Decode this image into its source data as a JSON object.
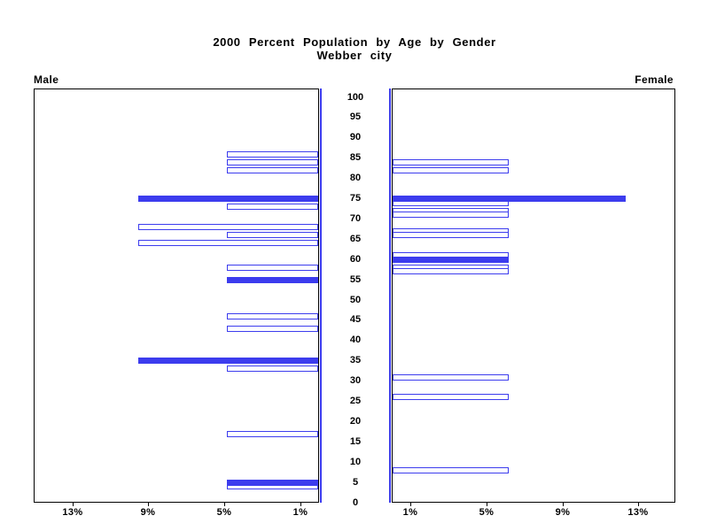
{
  "title": {
    "line1": "2000 Percent Population by Age by Gender",
    "line2": "Webber city"
  },
  "left_panel_label": "Male",
  "right_panel_label": "Female",
  "colors": {
    "bar_blue": "#3c3cee",
    "axis_black": "#000000",
    "background": "#ffffff"
  },
  "chart_data": {
    "type": "bar",
    "subtype": "population-pyramid",
    "title": "2000 Percent Population by Age by Gender",
    "subtitle": "Webber city",
    "age_axis": {
      "min": 0,
      "max": 100,
      "tick_step": 5,
      "tick_labels": [
        "0",
        "5",
        "10",
        "15",
        "20",
        "25",
        "30",
        "35",
        "40",
        "45",
        "50",
        "55",
        "60",
        "65",
        "70",
        "75",
        "80",
        "85",
        "90",
        "95",
        "100"
      ]
    },
    "pct_axis": {
      "min": 0,
      "max": 15,
      "tick_values": [
        1,
        5,
        9,
        13
      ],
      "male_tick_labels": [
        "13%",
        "9%",
        "5%",
        "1%"
      ],
      "female_tick_labels": [
        "1%",
        "5%",
        "9%",
        "13%"
      ]
    },
    "male": [
      {
        "age": 86,
        "pct": 4.8,
        "filled": false
      },
      {
        "age": 84,
        "pct": 4.8,
        "filled": false
      },
      {
        "age": 82,
        "pct": 4.8,
        "filled": false
      },
      {
        "age": 75,
        "pct": 9.5,
        "filled": true
      },
      {
        "age": 73,
        "pct": 4.8,
        "filled": false
      },
      {
        "age": 68,
        "pct": 9.5,
        "filled": false
      },
      {
        "age": 66,
        "pct": 4.8,
        "filled": false
      },
      {
        "age": 64,
        "pct": 9.5,
        "filled": false
      },
      {
        "age": 58,
        "pct": 4.8,
        "filled": false
      },
      {
        "age": 55,
        "pct": 4.8,
        "filled": true
      },
      {
        "age": 46,
        "pct": 4.8,
        "filled": false
      },
      {
        "age": 43,
        "pct": 4.8,
        "filled": false
      },
      {
        "age": 35,
        "pct": 9.5,
        "filled": true
      },
      {
        "age": 33,
        "pct": 4.8,
        "filled": false
      },
      {
        "age": 17,
        "pct": 4.8,
        "filled": false
      },
      {
        "age": 5,
        "pct": 4.8,
        "filled": true
      },
      {
        "age": 4,
        "pct": 4.8,
        "filled": false
      }
    ],
    "female": [
      {
        "age": 84,
        "pct": 6.1,
        "filled": false
      },
      {
        "age": 82,
        "pct": 6.1,
        "filled": false
      },
      {
        "age": 75,
        "pct": 12.3,
        "filled": true
      },
      {
        "age": 74,
        "pct": 6.1,
        "filled": false
      },
      {
        "age": 72,
        "pct": 6.1,
        "filled": false
      },
      {
        "age": 71,
        "pct": 6.1,
        "filled": false
      },
      {
        "age": 67,
        "pct": 6.1,
        "filled": false
      },
      {
        "age": 66,
        "pct": 6.1,
        "filled": false
      },
      {
        "age": 61,
        "pct": 6.1,
        "filled": false
      },
      {
        "age": 60,
        "pct": 6.1,
        "filled": true
      },
      {
        "age": 58,
        "pct": 6.1,
        "filled": false
      },
      {
        "age": 57,
        "pct": 6.1,
        "filled": false
      },
      {
        "age": 31,
        "pct": 6.1,
        "filled": false
      },
      {
        "age": 26,
        "pct": 6.1,
        "filled": false
      },
      {
        "age": 8,
        "pct": 6.1,
        "filled": false
      }
    ]
  }
}
